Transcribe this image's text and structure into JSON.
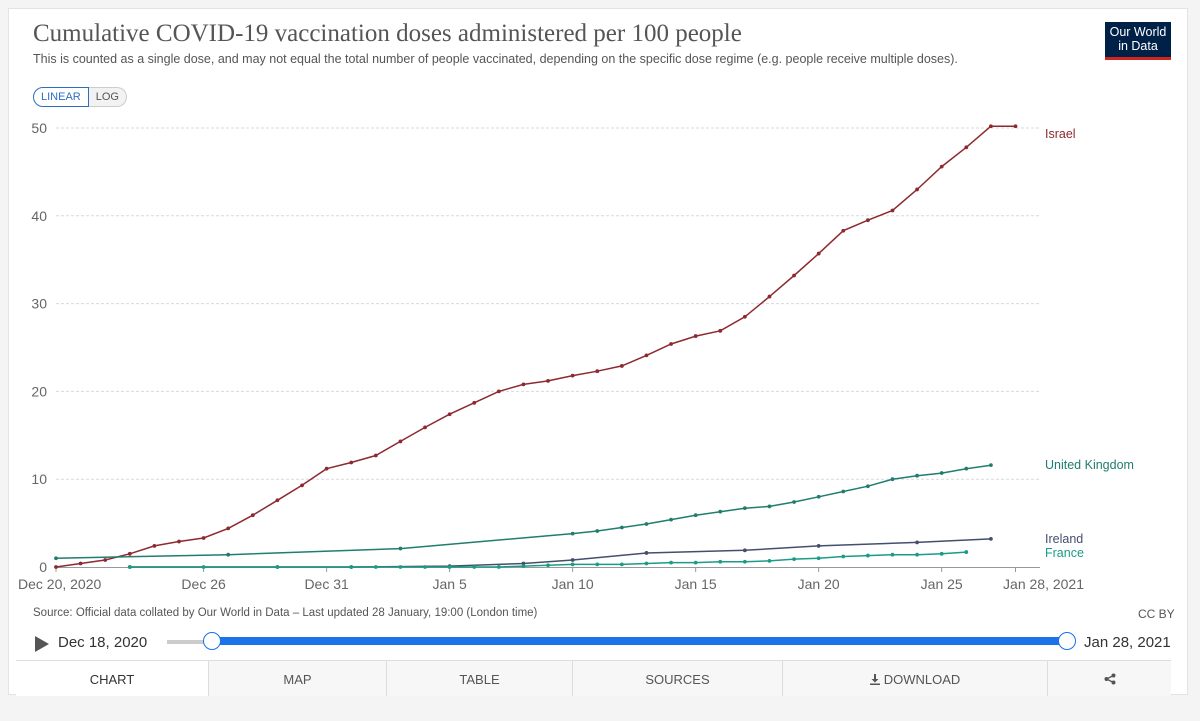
{
  "title": "Cumulative COVID-19 vaccination doses administered per 100 people",
  "subtitle": "This is counted as a single dose, and may not equal the total number of people vaccinated, depending on the specific dose regime (e.g. people receive multiple doses).",
  "logo": {
    "line1": "Our World",
    "line2": "in Data"
  },
  "scale_toggle": {
    "linear": "LINEAR",
    "log": "LOG"
  },
  "source": "Source: Official data collated by Our World in Data – Last updated 28 January, 19:00 (London time)",
  "license": "CC BY",
  "timeline": {
    "start": "Dec 18, 2020",
    "end": "Jan 28, 2021"
  },
  "tabs": {
    "chart": "CHART",
    "map": "MAP",
    "table": "TABLE",
    "sources": "SOURCES",
    "download": "DOWNLOAD"
  },
  "colors": {
    "israel": "#8c2a2f",
    "uk": "#207d6f",
    "ireland": "#444f6b",
    "france": "#1a9c86",
    "grid": "#d9d9d9",
    "axis": "#666666"
  },
  "chart_data": {
    "type": "line",
    "title": "Cumulative COVID-19 vaccination doses administered per 100 people",
    "xlabel": "",
    "ylabel": "",
    "x_unit": "days since Dec 20, 2020",
    "xlim": [
      0,
      39
    ],
    "ylim": [
      0,
      50
    ],
    "yticks": [
      0,
      10,
      20,
      30,
      40,
      50
    ],
    "xticks": [
      {
        "day": 0,
        "label": "Dec 20, 2020"
      },
      {
        "day": 6,
        "label": "Dec 26"
      },
      {
        "day": 11,
        "label": "Dec 31"
      },
      {
        "day": 16,
        "label": "Jan 5"
      },
      {
        "day": 21,
        "label": "Jan 10"
      },
      {
        "day": 26,
        "label": "Jan 15"
      },
      {
        "day": 31,
        "label": "Jan 20"
      },
      {
        "day": 36,
        "label": "Jan 25"
      },
      {
        "day": 39,
        "label": "Jan 28, 2021"
      }
    ],
    "series": [
      {
        "name": "Israel",
        "color": "#8c2a2f",
        "x": [
          0,
          1,
          2,
          3,
          4,
          5,
          6,
          7,
          8,
          9,
          10,
          11,
          12,
          13,
          14,
          15,
          16,
          17,
          18,
          19,
          20,
          21,
          22,
          23,
          24,
          25,
          26,
          27,
          28,
          29,
          30,
          31,
          32,
          33,
          34,
          35,
          36,
          37,
          38,
          39
        ],
        "y": [
          0,
          0.4,
          0.8,
          1.5,
          2.4,
          2.9,
          3.3,
          4.4,
          5.9,
          7.6,
          9.3,
          11.2,
          11.9,
          12.7,
          14.3,
          15.9,
          17.4,
          18.7,
          20.0,
          20.8,
          21.2,
          21.8,
          22.3,
          22.9,
          24.1,
          25.4,
          26.3,
          26.9,
          28.5,
          30.8,
          33.2,
          35.7,
          38.3,
          39.5,
          40.6,
          43.0,
          45.6,
          47.8,
          50.2,
          50.2
        ]
      },
      {
        "name": "United Kingdom",
        "color": "#207d6f",
        "x": [
          0,
          7,
          14,
          21,
          22,
          23,
          24,
          25,
          26,
          27,
          28,
          29,
          30,
          31,
          32,
          33,
          34,
          35,
          36,
          37,
          38
        ],
        "y": [
          1.0,
          1.4,
          2.1,
          3.8,
          4.1,
          4.5,
          4.9,
          5.4,
          5.9,
          6.3,
          6.7,
          6.9,
          7.4,
          8.0,
          8.6,
          9.2,
          10.0,
          10.4,
          10.7,
          11.2,
          11.6
        ]
      },
      {
        "name": "Ireland",
        "color": "#444f6b",
        "x": [
          3,
          9,
          12,
          16,
          19,
          21,
          24,
          28,
          31,
          35,
          38
        ],
        "y": [
          0,
          0,
          0,
          0.1,
          0.4,
          0.8,
          1.6,
          1.9,
          2.4,
          2.8,
          3.2
        ]
      },
      {
        "name": "France",
        "color": "#1a9c86",
        "x": [
          3,
          6,
          9,
          12,
          13,
          14,
          15,
          16,
          17,
          18,
          19,
          20,
          21,
          22,
          23,
          24,
          25,
          26,
          27,
          28,
          29,
          30,
          31,
          32,
          33,
          34,
          35,
          36,
          37
        ],
        "y": [
          0,
          0,
          0,
          0,
          0,
          0,
          0,
          0,
          0,
          0,
          0.1,
          0.2,
          0.3,
          0.3,
          0.3,
          0.4,
          0.5,
          0.5,
          0.6,
          0.6,
          0.7,
          0.9,
          1.0,
          1.2,
          1.3,
          1.4,
          1.4,
          1.5,
          1.7
        ]
      }
    ]
  }
}
